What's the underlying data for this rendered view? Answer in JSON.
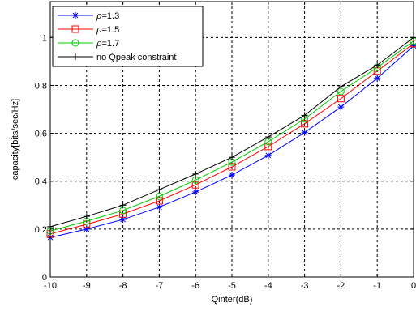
{
  "chart_data": {
    "type": "line",
    "xlabel": "Qinter(dB)",
    "ylabel": "capacity[bits/sec/Hz]",
    "xlim": [
      -10,
      0
    ],
    "ylim": [
      0,
      1.15
    ],
    "xticks": [
      -10,
      -9,
      -8,
      -7,
      -6,
      -5,
      -4,
      -3,
      -2,
      -1,
      0
    ],
    "yticks": [
      0,
      0.2,
      0.4,
      0.6,
      0.8,
      1
    ],
    "ytick_labels": [
      "0",
      "0.2",
      "0.4",
      "0.6",
      "0.8",
      "1"
    ],
    "grid": true,
    "legend_position": "top-left",
    "x": [
      -10,
      -9,
      -8,
      -7,
      -6,
      -5,
      -4,
      -3,
      -2,
      -1,
      0
    ],
    "series": [
      {
        "name_prefix": "ρ",
        "name_value": "=1.3",
        "color": "#0000ff",
        "marker": "asterisk",
        "line_style": "solid",
        "values": [
          0.165,
          0.2,
          0.24,
          0.292,
          0.355,
          0.426,
          0.508,
          0.603,
          0.71,
          0.83,
          0.965
        ]
      },
      {
        "name_prefix": "ρ",
        "name_value": "=1.5",
        "color": "#ff0000",
        "marker": "square",
        "line_style": "solid",
        "values": [
          0.18,
          0.22,
          0.263,
          0.318,
          0.385,
          0.46,
          0.545,
          0.64,
          0.745,
          0.86,
          0.975
        ]
      },
      {
        "name_prefix": "ρ",
        "name_value": "=1.7",
        "color": "#00cc00",
        "marker": "circle",
        "line_style": "solid",
        "values": [
          0.192,
          0.233,
          0.278,
          0.337,
          0.405,
          0.48,
          0.565,
          0.66,
          0.775,
          0.875,
          0.985
        ]
      },
      {
        "name": "no Qpeak constraint",
        "color": "#000000",
        "marker": "plus",
        "line_style": "solid",
        "values": [
          0.21,
          0.253,
          0.3,
          0.365,
          0.43,
          0.5,
          0.585,
          0.675,
          0.795,
          0.885,
          1.0
        ]
      }
    ]
  }
}
